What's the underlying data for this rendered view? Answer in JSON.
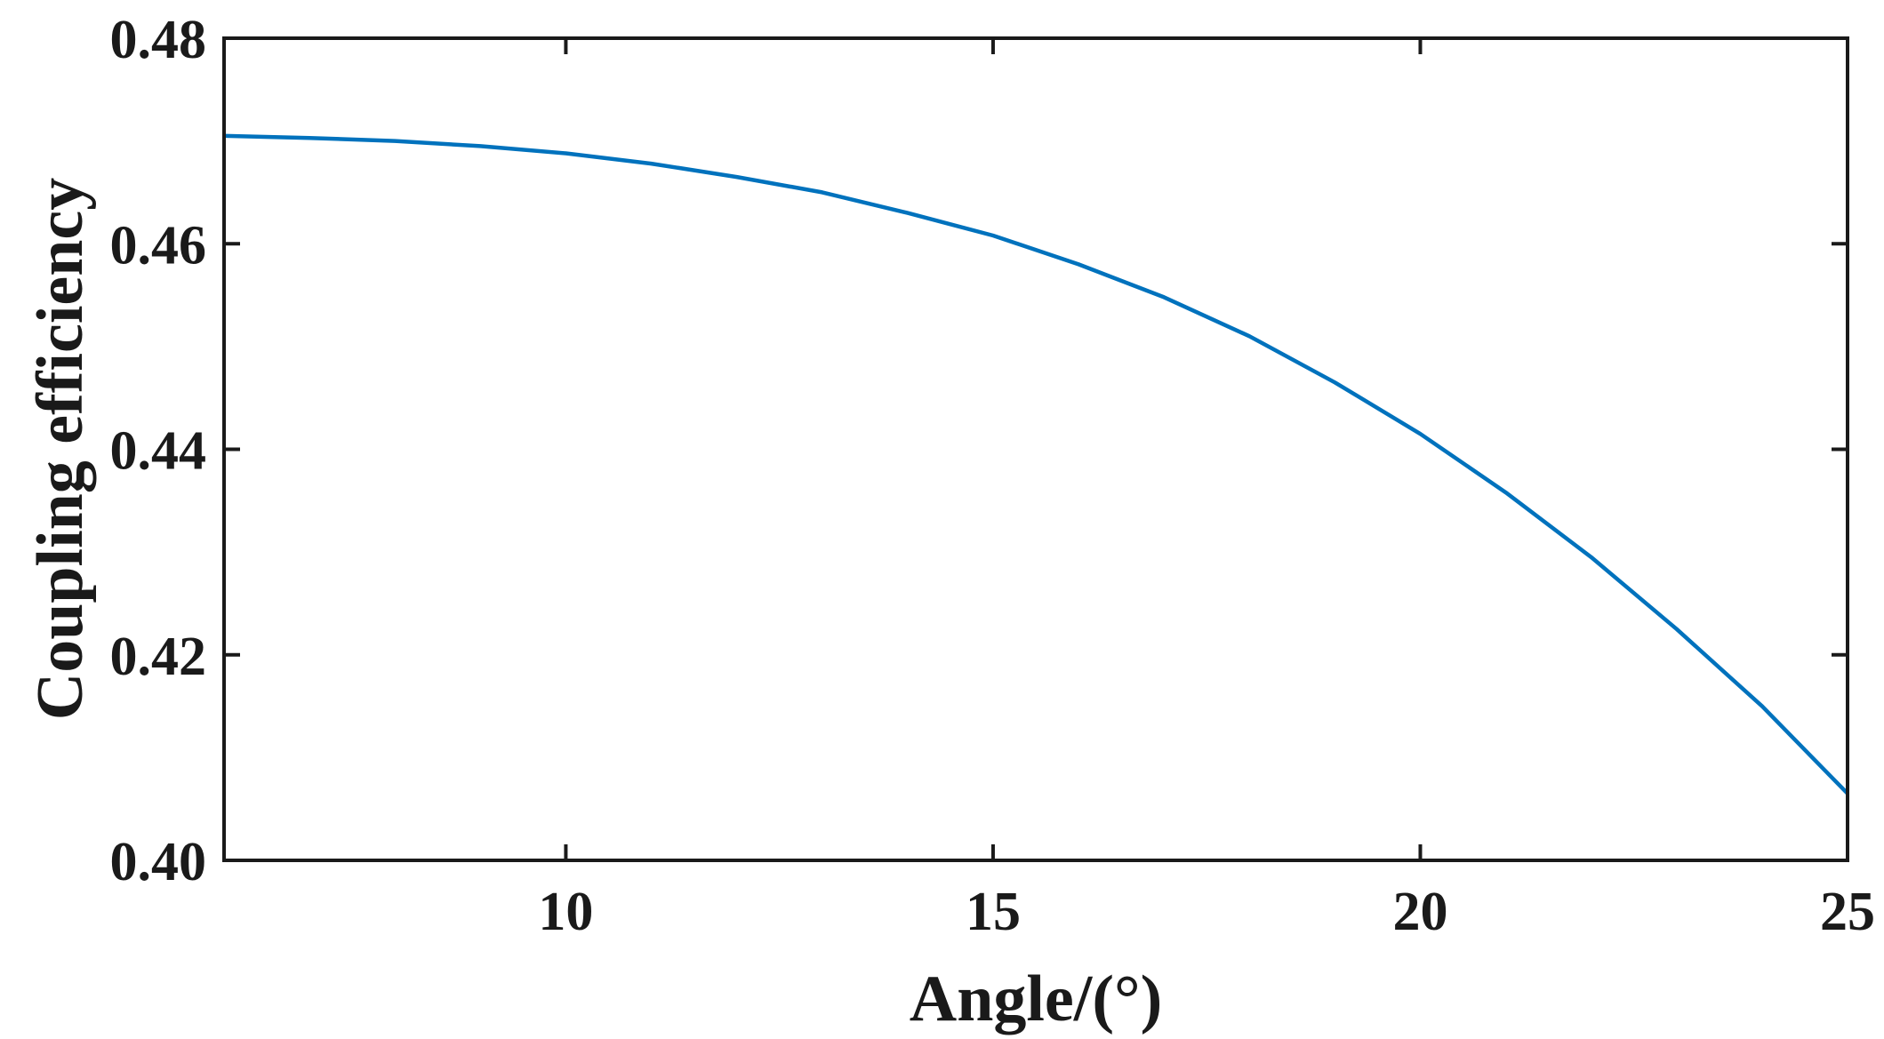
{
  "chart_data": {
    "type": "line",
    "title": "",
    "xlabel": "Angle/(°)",
    "ylabel": "Coupling efficiency",
    "xlim": [
      6,
      25
    ],
    "ylim": [
      0.4,
      0.48
    ],
    "xticks": [
      10,
      15,
      20,
      25
    ],
    "yticks": [
      0.4,
      0.42,
      0.44,
      0.46,
      0.48
    ],
    "xtick_labels": [
      "10",
      "15",
      "20",
      "25"
    ],
    "ytick_labels": [
      "0.40",
      "0.42",
      "0.44",
      "0.46",
      "0.48"
    ],
    "grid": false,
    "series": [
      {
        "color": "#0072BD",
        "x": [
          6,
          7,
          8,
          9,
          10,
          11,
          12,
          13,
          14,
          15,
          16,
          17,
          18,
          19,
          20,
          21,
          22,
          23,
          24,
          25
        ],
        "y": [
          0.4705,
          0.4703,
          0.47,
          0.4695,
          0.4688,
          0.4678,
          0.4665,
          0.465,
          0.463,
          0.4608,
          0.458,
          0.4548,
          0.451,
          0.4465,
          0.4415,
          0.4358,
          0.4295,
          0.4225,
          0.415,
          0.4065
        ]
      }
    ]
  }
}
